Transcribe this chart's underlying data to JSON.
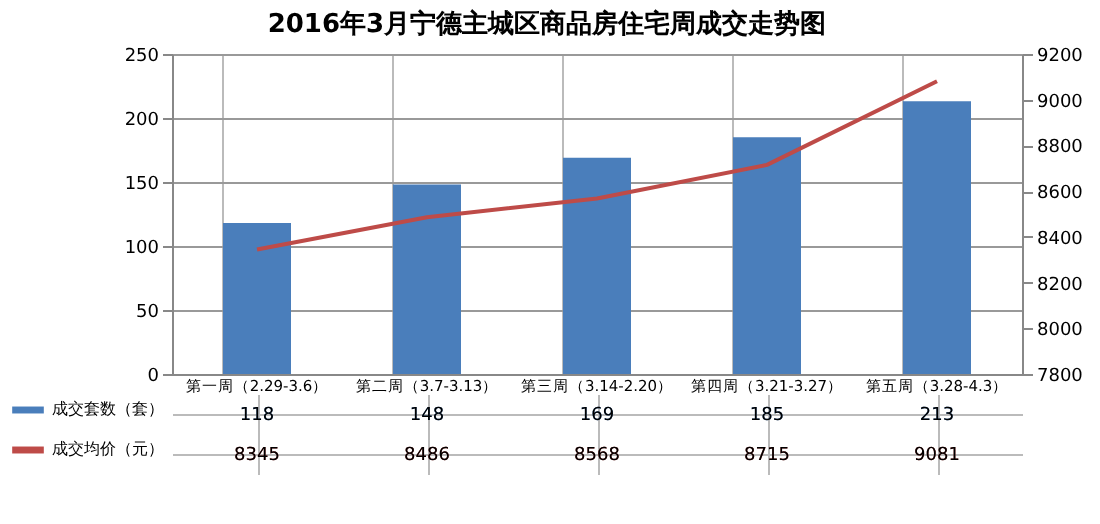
{
  "chart_data": {
    "type": "bar",
    "title": "2016年3月宁德主城区商品房住宅周成交走势图",
    "categories": [
      "第一周（2.29-3.6）",
      "第二周（3.7-3.13）",
      "第三周（3.14-2.20）",
      "第四周（3.21-3.27）",
      "第五周（3.28-4.3）"
    ],
    "series": [
      {
        "name": "成交套数（套）",
        "type": "bar",
        "color": "#4a7ebb",
        "values": [
          118,
          148,
          169,
          185,
          213
        ]
      },
      {
        "name": "成交均价（元）",
        "type": "line",
        "axis": "y2",
        "color": "#be4b48",
        "values": [
          8345,
          8486,
          8568,
          8715,
          9081
        ]
      }
    ],
    "ylim": [
      0,
      250
    ],
    "yticks": [
      0,
      50,
      100,
      150,
      200,
      250
    ],
    "y2lim": [
      7800,
      9200
    ],
    "y2ticks": [
      7800,
      8000,
      8200,
      8400,
      8600,
      8800,
      9000,
      9200
    ],
    "grid": "y",
    "legend": "bottom",
    "data_labels": true
  }
}
